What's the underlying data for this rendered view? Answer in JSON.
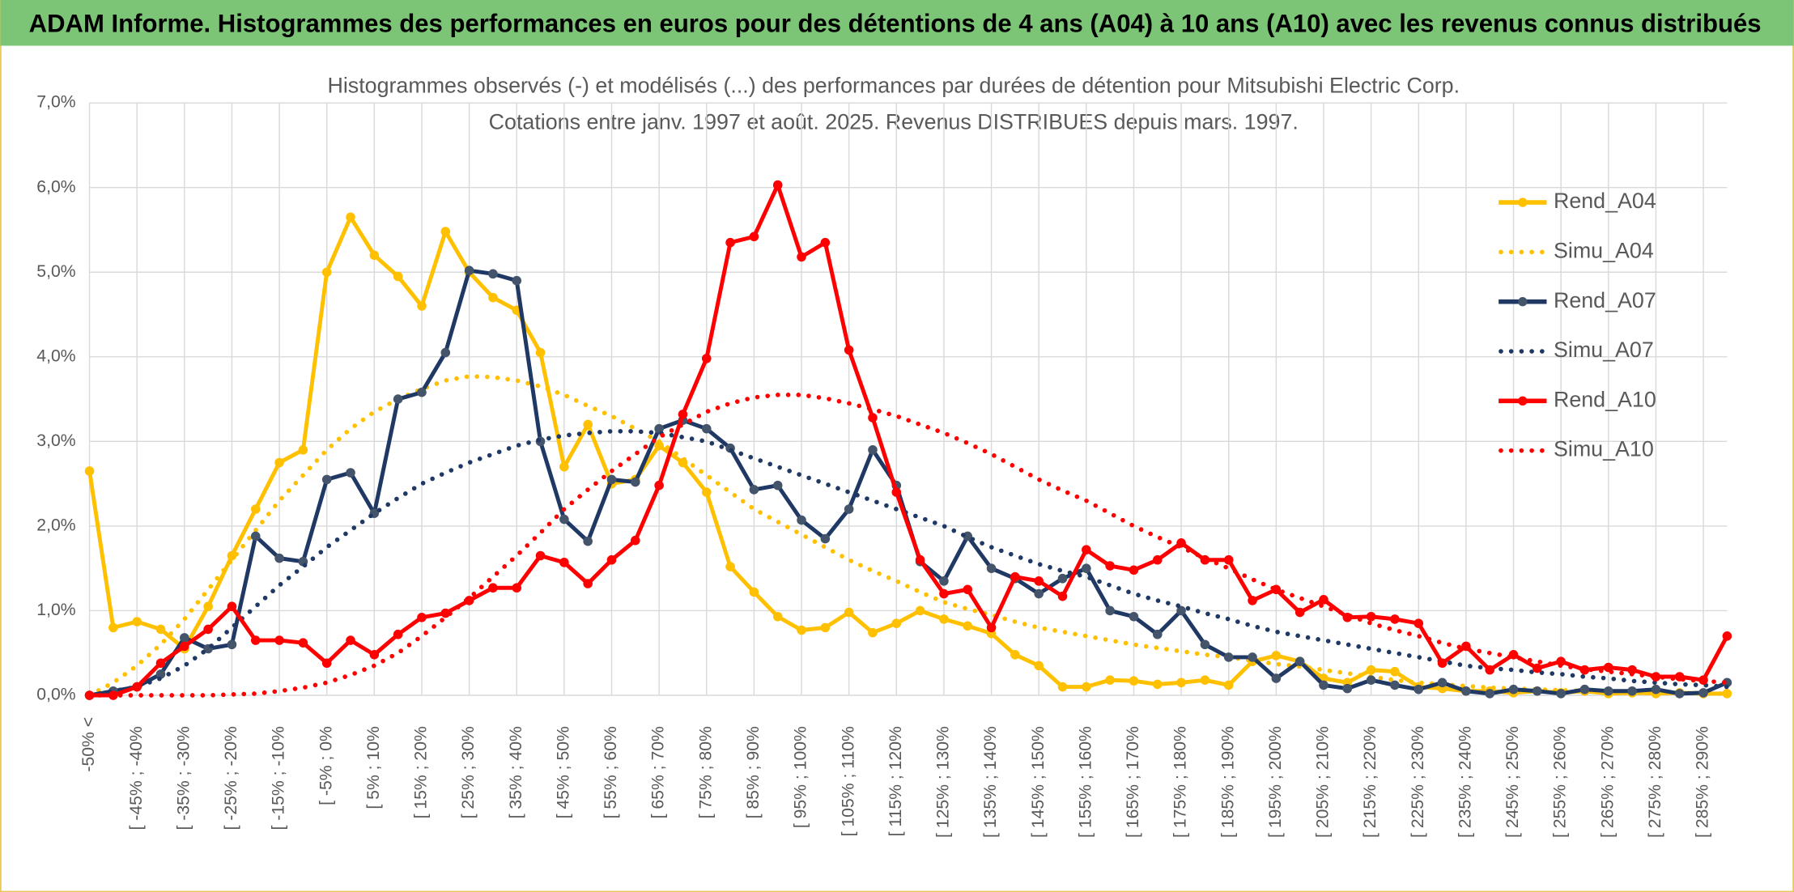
{
  "header": {
    "title": "ADAM Informe. Histogrammes des performances en euros pour des détentions de 4 ans (A04) à 10 ans (A10) avec les revenus connus distribués"
  },
  "chart_data": {
    "type": "line",
    "title": "Histogrammes observés (-) et modélisés (...) des performances par durées de détention pour Mitsubishi Electric Corp.",
    "subtitle": "Cotations entre janv. 1997 et août. 2025. Revenus DISTRIBUES depuis mars. 1997.",
    "categories": [
      "-50% <",
      null,
      "[ -45% ; -40%",
      null,
      "[ -35% ; -30%",
      null,
      "[ -25% ; -20%",
      null,
      "[ -15% ; -10%",
      null,
      "[ -5% ; 0%",
      null,
      "[ 5% ; 10%",
      null,
      "[ 15% ; 20%",
      null,
      "[ 25% ; 30%",
      null,
      "[ 35% ; 40%",
      null,
      "[ 45% ; 50%",
      null,
      "[ 55% ; 60%",
      null,
      "[ 65% ; 70%",
      null,
      "[ 75% ; 80%",
      null,
      "[ 85% ; 90%",
      null,
      "[ 95% ; 100%",
      null,
      "[ 105% ; 110%",
      null,
      "[ 115% ; 120%",
      null,
      "[ 125% ; 130%",
      null,
      "[ 135% ; 140%",
      null,
      "[ 145% ; 150%",
      null,
      "[ 155% ; 160%",
      null,
      "[ 165% ; 170%",
      null,
      "[ 175% ; 180%",
      null,
      "[ 185% ; 190%",
      null,
      "[ 195% ; 200%",
      null,
      "[ 205% ; 210%",
      null,
      "[ 215% ; 220%",
      null,
      "[ 225% ; 230%",
      null,
      "[ 235% ; 240%",
      null,
      "[ 245% ; 250%",
      null,
      "[ 255% ; 260%",
      null,
      "[ 265% ; 270%",
      null,
      "[ 275% ; 280%",
      null,
      "[ 285% ; 290%",
      null
    ],
    "ylim": [
      0,
      7
    ],
    "yticks": [
      {
        "value": 0,
        "label": "0,0%"
      },
      {
        "value": 1,
        "label": "1,0%"
      },
      {
        "value": 2,
        "label": "2,0%"
      },
      {
        "value": 3,
        "label": "3,0%"
      },
      {
        "value": 4,
        "label": "4,0%"
      },
      {
        "value": 5,
        "label": "5,0%"
      },
      {
        "value": 6,
        "label": "6,0%"
      },
      {
        "value": 7,
        "label": "7,0%"
      }
    ],
    "grid": true,
    "legend": "right",
    "series": [
      {
        "name": "Rend_A04",
        "color": "#FFC000",
        "line_style": "solid",
        "marker_color": "#FFC000",
        "values": [
          2.65,
          0.8,
          0.87,
          0.78,
          0.55,
          1.05,
          1.65,
          2.2,
          2.75,
          2.9,
          5.0,
          5.65,
          5.2,
          4.95,
          4.6,
          5.48,
          5.0,
          4.7,
          4.55,
          4.05,
          2.7,
          3.2,
          2.5,
          2.55,
          2.95,
          2.75,
          2.4,
          1.52,
          1.22,
          0.93,
          0.77,
          0.8,
          0.98,
          0.74,
          0.85,
          1.0,
          0.9,
          0.82,
          0.73,
          0.48,
          0.35,
          0.1,
          0.1,
          0.18,
          0.17,
          0.13,
          0.15,
          0.18,
          0.12,
          0.4,
          0.47,
          0.4,
          0.2,
          0.15,
          0.3,
          0.28,
          0.1,
          0.08,
          0.05,
          0.05,
          0.03,
          0.05,
          0.03,
          0.05,
          0.02,
          0.03,
          0.02,
          0.03,
          0.02,
          0.02
        ]
      },
      {
        "name": "Simu_A04",
        "color": "#FFC000",
        "line_style": "dotted",
        "values": [
          0,
          0.15,
          0.35,
          0.6,
          0.9,
          1.25,
          1.6,
          1.95,
          2.3,
          2.6,
          2.9,
          3.15,
          3.35,
          3.5,
          3.62,
          3.72,
          3.77,
          3.76,
          3.72,
          3.65,
          3.55,
          3.42,
          3.3,
          3.15,
          3.0,
          2.8,
          2.6,
          2.4,
          2.2,
          2.05,
          1.9,
          1.75,
          1.6,
          1.47,
          1.35,
          1.22,
          1.1,
          1.02,
          0.95,
          0.87,
          0.8,
          0.75,
          0.7,
          0.65,
          0.6,
          0.56,
          0.52,
          0.48,
          0.45,
          0.41,
          0.37,
          0.34,
          0.3,
          0.26,
          0.22,
          0.18,
          0.15,
          0.13,
          0.11,
          0.09,
          0.08,
          0.07,
          0.06,
          0.05,
          0.05,
          0.04,
          0.03,
          0.03,
          0.02,
          0.02
        ]
      },
      {
        "name": "Rend_A07",
        "color": "#1F3864",
        "line_style": "solid",
        "marker_color": "#44546A",
        "values": [
          0,
          0.05,
          0.1,
          0.25,
          0.68,
          0.55,
          0.6,
          1.88,
          1.62,
          1.58,
          2.55,
          2.63,
          2.15,
          3.5,
          3.58,
          4.05,
          5.02,
          4.98,
          4.9,
          3.0,
          2.08,
          1.82,
          2.55,
          2.52,
          3.15,
          3.25,
          3.15,
          2.92,
          2.43,
          2.48,
          2.07,
          1.85,
          2.2,
          2.9,
          2.48,
          1.58,
          1.35,
          1.88,
          1.5,
          1.38,
          1.2,
          1.38,
          1.5,
          1.0,
          0.93,
          0.72,
          1.0,
          0.6,
          0.45,
          0.45,
          0.2,
          0.4,
          0.12,
          0.08,
          0.18,
          0.12,
          0.07,
          0.15,
          0.05,
          0.02,
          0.07,
          0.05,
          0.02,
          0.07,
          0.05,
          0.05,
          0.07,
          0.02,
          0.03,
          0.15
        ]
      },
      {
        "name": "Simu_A07",
        "color": "#1F3864",
        "line_style": "dotted",
        "values": [
          0,
          0.05,
          0.1,
          0.2,
          0.35,
          0.55,
          0.8,
          1.05,
          1.3,
          1.52,
          1.75,
          1.95,
          2.15,
          2.33,
          2.5,
          2.63,
          2.75,
          2.85,
          2.95,
          3.02,
          3.07,
          3.1,
          3.12,
          3.12,
          3.1,
          3.05,
          3.0,
          2.9,
          2.8,
          2.7,
          2.6,
          2.5,
          2.4,
          2.3,
          2.2,
          2.1,
          2.0,
          1.87,
          1.75,
          1.65,
          1.55,
          1.47,
          1.4,
          1.3,
          1.2,
          1.12,
          1.05,
          0.97,
          0.9,
          0.82,
          0.75,
          0.7,
          0.65,
          0.6,
          0.55,
          0.5,
          0.45,
          0.4,
          0.35,
          0.32,
          0.3,
          0.27,
          0.25,
          0.22,
          0.2,
          0.17,
          0.15,
          0.13,
          0.12,
          0.1
        ]
      },
      {
        "name": "Rend_A10",
        "color": "#FF0000",
        "line_style": "solid",
        "marker_color": "#FF0000",
        "values": [
          0,
          0,
          0.1,
          0.38,
          0.58,
          0.78,
          1.05,
          0.65,
          0.65,
          0.62,
          0.38,
          0.65,
          0.48,
          0.72,
          0.92,
          0.97,
          1.12,
          1.27,
          1.27,
          1.65,
          1.57,
          1.32,
          1.6,
          1.83,
          2.48,
          3.32,
          3.98,
          5.35,
          5.42,
          6.03,
          5.18,
          5.35,
          4.08,
          3.28,
          2.4,
          1.6,
          1.2,
          1.25,
          0.8,
          1.4,
          1.35,
          1.17,
          1.72,
          1.53,
          1.48,
          1.6,
          1.8,
          1.6,
          1.6,
          1.12,
          1.25,
          0.98,
          1.13,
          0.92,
          0.93,
          0.9,
          0.85,
          0.38,
          0.58,
          0.3,
          0.48,
          0.32,
          0.4,
          0.3,
          0.33,
          0.3,
          0.22,
          0.22,
          0.18,
          0.7
        ]
      },
      {
        "name": "Simu_A10",
        "color": "#FF0000",
        "line_style": "dotted",
        "values": [
          0,
          0,
          0,
          0,
          0,
          0,
          0.01,
          0.02,
          0.05,
          0.09,
          0.15,
          0.24,
          0.35,
          0.5,
          0.7,
          0.92,
          1.15,
          1.4,
          1.65,
          1.92,
          2.2,
          2.43,
          2.65,
          2.85,
          3.05,
          3.2,
          3.35,
          3.45,
          3.52,
          3.55,
          3.55,
          3.51,
          3.45,
          3.38,
          3.3,
          3.2,
          3.1,
          2.98,
          2.85,
          2.7,
          2.55,
          2.42,
          2.3,
          2.15,
          2.0,
          1.87,
          1.75,
          1.62,
          1.5,
          1.37,
          1.25,
          1.15,
          1.05,
          0.95,
          0.85,
          0.77,
          0.7,
          0.62,
          0.55,
          0.5,
          0.45,
          0.4,
          0.35,
          0.31,
          0.28,
          0.25,
          0.22,
          0.19,
          0.17,
          0.15
        ]
      }
    ]
  }
}
